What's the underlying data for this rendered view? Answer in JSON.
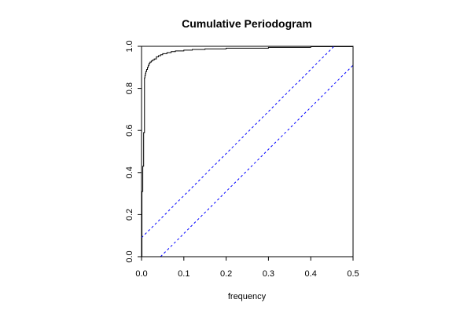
{
  "chart_data": {
    "type": "line",
    "title": "Cumulative Periodogram",
    "xlabel": "frequency",
    "ylabel": "",
    "xlim": [
      0,
      0.5
    ],
    "ylim": [
      0,
      1
    ],
    "xticks": [
      "0.0",
      "0.1",
      "0.2",
      "0.3",
      "0.4",
      "0.5"
    ],
    "yticks": [
      "0.0",
      "0.2",
      "0.4",
      "0.6",
      "0.8",
      "1.0"
    ],
    "grid": false,
    "series": [
      {
        "color": "#000000",
        "style": "step",
        "x": [
          0.0,
          0.001,
          0.002,
          0.003,
          0.004,
          0.005,
          0.006,
          0.007,
          0.008,
          0.009,
          0.01,
          0.012,
          0.014,
          0.016,
          0.018,
          0.02,
          0.023,
          0.026,
          0.03,
          0.035,
          0.04,
          0.045,
          0.05,
          0.06,
          0.07,
          0.08,
          0.1,
          0.12,
          0.15,
          0.2,
          0.3,
          0.4,
          0.5
        ],
        "y": [
          0.0,
          0.31,
          0.31,
          0.43,
          0.43,
          0.59,
          0.59,
          0.85,
          0.86,
          0.87,
          0.88,
          0.89,
          0.9,
          0.91,
          0.92,
          0.925,
          0.93,
          0.935,
          0.94,
          0.95,
          0.955,
          0.96,
          0.965,
          0.97,
          0.975,
          0.978,
          0.982,
          0.985,
          0.988,
          0.991,
          0.995,
          0.998,
          1.0
        ]
      },
      {
        "color": "#0000ff",
        "style": "dashed",
        "x": [
          0.0,
          0.455
        ],
        "y": [
          0.09,
          1.0
        ]
      },
      {
        "color": "#0000ff",
        "style": "dashed",
        "x": [
          0.045,
          0.5
        ],
        "y": [
          0.0,
          0.91
        ]
      }
    ]
  }
}
